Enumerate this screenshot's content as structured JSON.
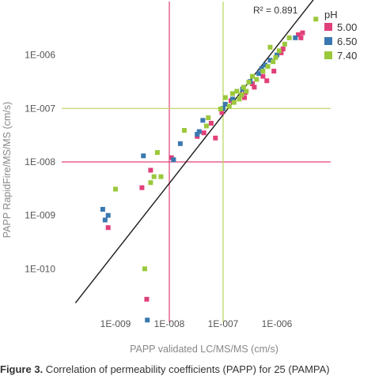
{
  "chart_data": {
    "type": "scatter",
    "xlabel": "PAPP validated LC/MS/MS (cm/s)",
    "ylabel": "PAPP RapidFire/MS/MS (cm/s)",
    "xscale": "log",
    "yscale": "log",
    "xlim": [
      1e-10,
      1e-05
    ],
    "ylim": [
      1e-11,
      1e-05
    ],
    "xticks": [
      {
        "value": 1e-09,
        "label": "1E-009"
      },
      {
        "value": 1e-08,
        "label": "1E-008"
      },
      {
        "value": 1e-07,
        "label": "1E-007"
      },
      {
        "value": 1e-06,
        "label": "1E-006"
      }
    ],
    "yticks": [
      {
        "value": 1e-10,
        "label": "1E-010"
      },
      {
        "value": 1e-09,
        "label": "1E-009"
      },
      {
        "value": 1e-08,
        "label": "1E-008"
      },
      {
        "value": 1e-07,
        "label": "1E-007"
      },
      {
        "value": 1e-06,
        "label": "1E-006"
      }
    ],
    "grid": false,
    "legend": {
      "title": "pH",
      "placement": "top-right"
    },
    "annotation": "R² = 0.891",
    "fit_line": {
      "x": [
        1.8e-10,
        5.5e-06
      ],
      "y": [
        2.3e-11,
        1.3e-05
      ],
      "color": "#1a1a1a"
    },
    "reference_lines": [
      {
        "axis": "x",
        "value": 1e-08,
        "color": "#e0407a"
      },
      {
        "axis": "y",
        "value": 1e-08,
        "color": "#e0407a"
      },
      {
        "axis": "x",
        "value": 1e-07,
        "color": "#b8d65a"
      },
      {
        "axis": "y",
        "value": 1e-07,
        "color": "#b8d65a"
      }
    ],
    "series": [
      {
        "name": "5.00",
        "color": "#e0407a",
        "points": [
          [
            7.3e-10,
            5.9e-10
          ],
          [
            3.1e-09,
            3.3e-09
          ],
          [
            3.8e-09,
            2.7e-11
          ],
          [
            4.5e-09,
            7e-09
          ],
          [
            1.1e-08,
            1.2e-08
          ],
          [
            3.3e-08,
            3e-08
          ],
          [
            4.4e-08,
            3.5e-08
          ],
          [
            6e-08,
            5.3e-08
          ],
          [
            7.2e-08,
            2.8e-08
          ],
          [
            9.5e-08,
            8.4e-08
          ],
          [
            1.4e-07,
            1.4e-07
          ],
          [
            2.5e-07,
            1.6e-07
          ],
          [
            2.6e-07,
            2e-07
          ],
          [
            3.5e-07,
            2.9e-07
          ],
          [
            3.8e-07,
            2.5e-07
          ],
          [
            5.5e-07,
            4e-07
          ],
          [
            6.5e-07,
            3.3e-07
          ],
          [
            8.8e-07,
            5e-07
          ],
          [
            1.2e-06,
            1.1e-06
          ],
          [
            1.3e-06,
            1.3e-06
          ],
          [
            2.5e-06,
            2.4e-06
          ],
          [
            2.8e-06,
            2.1e-06
          ],
          [
            3e-06,
            2.6e-06
          ]
        ]
      },
      {
        "name": "6.50",
        "color": "#3a78b0",
        "points": [
          [
            5.8e-10,
            1.3e-09
          ],
          [
            6.4e-10,
            8.2e-10
          ],
          [
            7.3e-10,
            1e-09
          ],
          [
            3.3e-09,
            1.3e-08
          ],
          [
            3.9e-09,
            1.1e-11
          ],
          [
            1.2e-08,
            1.1e-08
          ],
          [
            1.6e-08,
            2.2e-08
          ],
          [
            3.3e-08,
            3.3e-08
          ],
          [
            3.6e-08,
            3.7e-08
          ],
          [
            4.2e-08,
            6e-08
          ],
          [
            1e-07,
            1e-07
          ],
          [
            1.1e-07,
            1.2e-07
          ],
          [
            1.5e-07,
            1.5e-07
          ],
          [
            2.3e-07,
            2.3e-07
          ],
          [
            3.2e-07,
            3.2e-07
          ],
          [
            4.6e-07,
            4.5e-07
          ],
          [
            5.2e-07,
            5.6e-07
          ],
          [
            6e-07,
            6.5e-07
          ],
          [
            7.5e-07,
            8e-07
          ],
          [
            1e-06,
            1e-06
          ],
          [
            2.2e-06,
            2.1e-06
          ]
        ]
      },
      {
        "name": "7.40",
        "color": "#9bc83c",
        "points": [
          [
            1e-09,
            3.1e-09
          ],
          [
            3.5e-09,
            1e-10
          ],
          [
            4.5e-09,
            4.1e-09
          ],
          [
            5.2e-09,
            5.3e-09
          ],
          [
            6e-09,
            1.5e-08
          ],
          [
            7e-09,
            5.3e-09
          ],
          [
            1.9e-08,
            3.9e-08
          ],
          [
            4.9e-08,
            4.7e-08
          ],
          [
            5.3e-08,
            6.7e-08
          ],
          [
            9e-08,
            9.8e-08
          ],
          [
            1.1e-07,
            1.6e-07
          ],
          [
            1.3e-07,
            1.1e-07
          ],
          [
            1.5e-07,
            1.9e-07
          ],
          [
            1.6e-07,
            1.3e-07
          ],
          [
            1.8e-07,
            2.1e-07
          ],
          [
            2e-07,
            1.5e-07
          ],
          [
            2.2e-07,
            1.8e-07
          ],
          [
            2.4e-07,
            2.5e-07
          ],
          [
            2.7e-07,
            2.1e-07
          ],
          [
            3e-07,
            3.1e-07
          ],
          [
            3.5e-07,
            4e-07
          ],
          [
            4.2e-07,
            3.5e-07
          ],
          [
            5.5e-07,
            5e-07
          ],
          [
            6.8e-07,
            6.1e-07
          ],
          [
            7.5e-07,
            1.4e-06
          ],
          [
            8.5e-07,
            7.5e-07
          ],
          [
            9.5e-07,
            9e-07
          ],
          [
            1.1e-06,
            1.2e-06
          ],
          [
            1.4e-06,
            1.6e-06
          ],
          [
            1.7e-06,
            2.1e-06
          ],
          [
            5.3e-06,
            4.7e-06
          ]
        ]
      }
    ]
  },
  "caption": {
    "label": "Figure 3.",
    "text": " Correlation of permeability coefficients (PAPP) for 25 (PAMPA)"
  }
}
